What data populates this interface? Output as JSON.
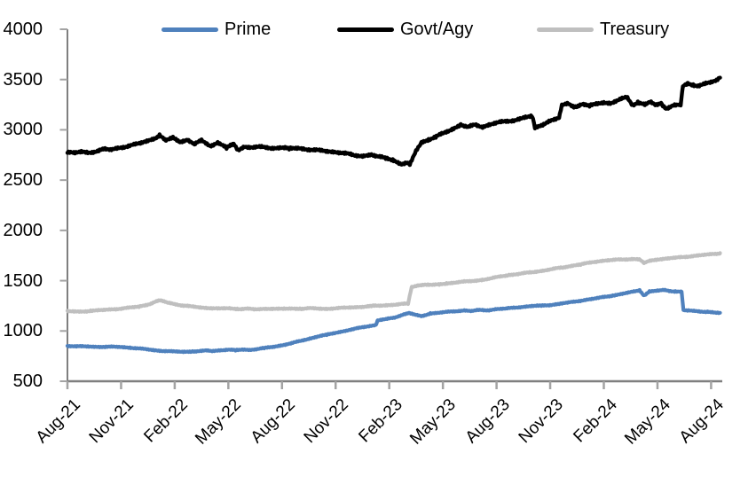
{
  "chart_data": {
    "type": "line",
    "title": "",
    "xlabel": "",
    "ylabel": "",
    "grid": false,
    "ylim": [
      500,
      4000
    ],
    "yticks": [
      500,
      1000,
      1500,
      2000,
      2500,
      3000,
      3500,
      4000
    ],
    "xtick_labels": [
      "Aug-21",
      "Nov-21",
      "Feb-22",
      "May-22",
      "Aug-22",
      "Nov-22",
      "Feb-23",
      "May-23",
      "Aug-23",
      "Nov-23",
      "Feb-24",
      "May-24",
      "Aug-24"
    ],
    "months_per_tick": 3,
    "months_shown": 36.5,
    "axis_color": "#7f7f7f",
    "tick_color": "#a3a3a3",
    "legend": {
      "position": "top",
      "entries": [
        {
          "label": "Prime",
          "color": "#4f81bd"
        },
        {
          "label": "Govt/Agy",
          "color": "#000000"
        },
        {
          "label": "Treasury",
          "color": "#bfbfbf"
        }
      ]
    },
    "x_unit": "months since Aug-2021",
    "series": [
      {
        "name": "Prime",
        "color": "#4f81bd",
        "points": [
          [
            0,
            852
          ],
          [
            0.5,
            848
          ],
          [
            1,
            846
          ],
          [
            1.5,
            843
          ],
          [
            2,
            842
          ],
          [
            2.5,
            843
          ],
          [
            3,
            840
          ],
          [
            3.5,
            834
          ],
          [
            4,
            826
          ],
          [
            4.5,
            816
          ],
          [
            5,
            806
          ],
          [
            5.5,
            800
          ],
          [
            6,
            795
          ],
          [
            6.5,
            793
          ],
          [
            7,
            796
          ],
          [
            7.5,
            800
          ],
          [
            7.8,
            806
          ],
          [
            8.1,
            800
          ],
          [
            8.5,
            808
          ],
          [
            9,
            814
          ],
          [
            9.4,
            808
          ],
          [
            9.8,
            816
          ],
          [
            10.2,
            812
          ],
          [
            10.6,
            820
          ],
          [
            11,
            830
          ],
          [
            11.5,
            842
          ],
          [
            12,
            858
          ],
          [
            12.5,
            876
          ],
          [
            13,
            900
          ],
          [
            13.5,
            922
          ],
          [
            14,
            945
          ],
          [
            14.5,
            962
          ],
          [
            15,
            982
          ],
          [
            15.5,
            1000
          ],
          [
            16,
            1018
          ],
          [
            16.5,
            1038
          ],
          [
            17,
            1052
          ],
          [
            17.25,
            1060
          ],
          [
            17.35,
            1106
          ],
          [
            17.8,
            1116
          ],
          [
            18.3,
            1134
          ],
          [
            18.8,
            1164
          ],
          [
            19.1,
            1180
          ],
          [
            19.45,
            1160
          ],
          [
            19.8,
            1146
          ],
          [
            20.3,
            1174
          ],
          [
            20.8,
            1182
          ],
          [
            21.3,
            1190
          ],
          [
            21.8,
            1198
          ],
          [
            22.2,
            1205
          ],
          [
            22.6,
            1198
          ],
          [
            23,
            1208
          ],
          [
            23.5,
            1205
          ],
          [
            24,
            1218
          ],
          [
            24.5,
            1222
          ],
          [
            25,
            1232
          ],
          [
            25.5,
            1240
          ],
          [
            26,
            1248
          ],
          [
            26.5,
            1252
          ],
          [
            27,
            1258
          ],
          [
            27.5,
            1270
          ],
          [
            28,
            1282
          ],
          [
            28.5,
            1295
          ],
          [
            29,
            1310
          ],
          [
            29.5,
            1322
          ],
          [
            30,
            1338
          ],
          [
            30.5,
            1352
          ],
          [
            31,
            1368
          ],
          [
            31.5,
            1386
          ],
          [
            31.8,
            1396
          ],
          [
            32,
            1406
          ],
          [
            32.25,
            1352
          ],
          [
            32.55,
            1392
          ],
          [
            33,
            1400
          ],
          [
            33.4,
            1407
          ],
          [
            33.7,
            1398
          ],
          [
            34,
            1393
          ],
          [
            34.35,
            1390
          ],
          [
            34.45,
            1206
          ],
          [
            34.8,
            1202
          ],
          [
            35.3,
            1196
          ],
          [
            35.8,
            1190
          ],
          [
            36.2,
            1182
          ],
          [
            36.5,
            1178
          ]
        ]
      },
      {
        "name": "Govt/Agy",
        "color": "#000000",
        "points": [
          [
            0,
            2780
          ],
          [
            0.4,
            2768
          ],
          [
            0.8,
            2782
          ],
          [
            1.2,
            2772
          ],
          [
            1.6,
            2788
          ],
          [
            2,
            2808
          ],
          [
            2.4,
            2800
          ],
          [
            2.8,
            2818
          ],
          [
            3.2,
            2832
          ],
          [
            3.6,
            2848
          ],
          [
            4,
            2862
          ],
          [
            4.5,
            2892
          ],
          [
            5,
            2926
          ],
          [
            5.15,
            2948
          ],
          [
            5.5,
            2890
          ],
          [
            5.9,
            2924
          ],
          [
            6.3,
            2878
          ],
          [
            6.7,
            2906
          ],
          [
            7.1,
            2854
          ],
          [
            7.5,
            2896
          ],
          [
            8,
            2836
          ],
          [
            8.4,
            2878
          ],
          [
            8.9,
            2820
          ],
          [
            9.3,
            2862
          ],
          [
            9.55,
            2794
          ],
          [
            9.9,
            2836
          ],
          [
            10.4,
            2822
          ],
          [
            10.9,
            2832
          ],
          [
            11.4,
            2816
          ],
          [
            11.9,
            2826
          ],
          [
            12.4,
            2812
          ],
          [
            12.9,
            2820
          ],
          [
            13.4,
            2806
          ],
          [
            14.2,
            2792
          ],
          [
            15,
            2780
          ],
          [
            15.5,
            2768
          ],
          [
            16,
            2746
          ],
          [
            16.5,
            2740
          ],
          [
            17,
            2756
          ],
          [
            17.3,
            2732
          ],
          [
            17.8,
            2722
          ],
          [
            18.2,
            2700
          ],
          [
            18.7,
            2658
          ],
          [
            19,
            2672
          ],
          [
            19.15,
            2650
          ],
          [
            19.5,
            2792
          ],
          [
            19.8,
            2878
          ],
          [
            20.2,
            2900
          ],
          [
            20.6,
            2932
          ],
          [
            21,
            2962
          ],
          [
            21.5,
            3006
          ],
          [
            22,
            3050
          ],
          [
            22.4,
            3026
          ],
          [
            22.8,
            3050
          ],
          [
            23.2,
            3030
          ],
          [
            23.6,
            3052
          ],
          [
            24,
            3070
          ],
          [
            24.5,
            3082
          ],
          [
            25,
            3096
          ],
          [
            25.6,
            3126
          ],
          [
            26,
            3132
          ],
          [
            26.15,
            3020
          ],
          [
            26.5,
            3046
          ],
          [
            27,
            3092
          ],
          [
            27.5,
            3118
          ],
          [
            27.65,
            3240
          ],
          [
            28,
            3262
          ],
          [
            28.4,
            3226
          ],
          [
            28.8,
            3256
          ],
          [
            29.2,
            3240
          ],
          [
            29.6,
            3256
          ],
          [
            30,
            3276
          ],
          [
            30.4,
            3262
          ],
          [
            31,
            3310
          ],
          [
            31.3,
            3322
          ],
          [
            31.6,
            3248
          ],
          [
            31.9,
            3272
          ],
          [
            32.3,
            3252
          ],
          [
            32.6,
            3278
          ],
          [
            32.9,
            3242
          ],
          [
            33.2,
            3262
          ],
          [
            33.5,
            3212
          ],
          [
            33.9,
            3244
          ],
          [
            34.3,
            3250
          ],
          [
            34.42,
            3432
          ],
          [
            34.7,
            3456
          ],
          [
            35,
            3446
          ],
          [
            35.3,
            3440
          ],
          [
            35.7,
            3462
          ],
          [
            36,
            3472
          ],
          [
            36.3,
            3488
          ],
          [
            36.5,
            3520
          ]
        ]
      },
      {
        "name": "Treasury",
        "color": "#bfbfbf",
        "points": [
          [
            0,
            1195
          ],
          [
            0.7,
            1192
          ],
          [
            1.3,
            1200
          ],
          [
            2,
            1208
          ],
          [
            2.7,
            1218
          ],
          [
            3.3,
            1228
          ],
          [
            4,
            1242
          ],
          [
            4.6,
            1268
          ],
          [
            5,
            1296
          ],
          [
            5.2,
            1304
          ],
          [
            5.6,
            1282
          ],
          [
            6,
            1268
          ],
          [
            6.5,
            1252
          ],
          [
            7,
            1242
          ],
          [
            7.5,
            1232
          ],
          [
            8,
            1228
          ],
          [
            8.5,
            1222
          ],
          [
            9,
            1226
          ],
          [
            9.5,
            1218
          ],
          [
            10,
            1222
          ],
          [
            10.5,
            1214
          ],
          [
            11,
            1220
          ],
          [
            11.5,
            1222
          ],
          [
            12,
            1218
          ],
          [
            12.5,
            1224
          ],
          [
            13,
            1220
          ],
          [
            13.5,
            1226
          ],
          [
            14,
            1222
          ],
          [
            14.5,
            1220
          ],
          [
            15,
            1226
          ],
          [
            15.5,
            1230
          ],
          [
            16,
            1236
          ],
          [
            16.5,
            1240
          ],
          [
            17,
            1248
          ],
          [
            17.5,
            1252
          ],
          [
            18,
            1258
          ],
          [
            18.6,
            1266
          ],
          [
            19.05,
            1272
          ],
          [
            19.25,
            1438
          ],
          [
            19.6,
            1452
          ],
          [
            20,
            1462
          ],
          [
            20.4,
            1456
          ],
          [
            20.8,
            1464
          ],
          [
            21.2,
            1472
          ],
          [
            21.7,
            1482
          ],
          [
            22.2,
            1490
          ],
          [
            22.7,
            1498
          ],
          [
            23.2,
            1508
          ],
          [
            23.7,
            1522
          ],
          [
            24.2,
            1542
          ],
          [
            24.7,
            1556
          ],
          [
            25.2,
            1566
          ],
          [
            25.7,
            1578
          ],
          [
            26.2,
            1590
          ],
          [
            26.7,
            1602
          ],
          [
            27.2,
            1618
          ],
          [
            27.7,
            1632
          ],
          [
            28.2,
            1648
          ],
          [
            28.7,
            1662
          ],
          [
            29.2,
            1678
          ],
          [
            29.7,
            1694
          ],
          [
            30.2,
            1702
          ],
          [
            30.7,
            1708
          ],
          [
            31.2,
            1712
          ],
          [
            31.6,
            1716
          ],
          [
            32,
            1712
          ],
          [
            32.25,
            1676
          ],
          [
            32.6,
            1698
          ],
          [
            33,
            1712
          ],
          [
            33.5,
            1720
          ],
          [
            34,
            1728
          ],
          [
            34.5,
            1736
          ],
          [
            35,
            1746
          ],
          [
            35.5,
            1754
          ],
          [
            36,
            1763
          ],
          [
            36.5,
            1772
          ]
        ]
      }
    ]
  }
}
